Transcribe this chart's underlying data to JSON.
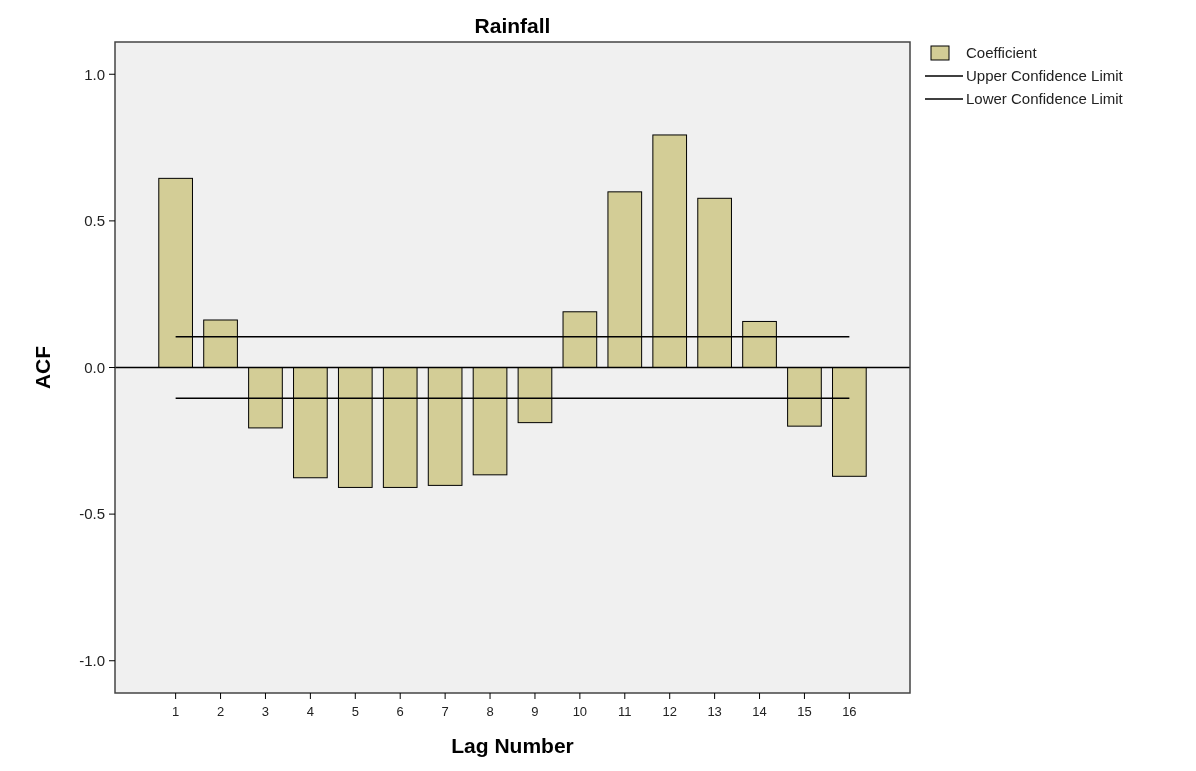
{
  "chart_data": {
    "type": "bar",
    "title": "Rainfall",
    "xlabel": "Lag Number",
    "ylabel": "ACF",
    "categories": [
      "1",
      "2",
      "3",
      "4",
      "5",
      "6",
      "7",
      "8",
      "9",
      "10",
      "11",
      "12",
      "13",
      "14",
      "15",
      "16"
    ],
    "series": [
      {
        "name": "Coefficient",
        "type": "bar",
        "color": "#d3cd96",
        "values": [
          0.645,
          0.162,
          -0.206,
          -0.376,
          -0.409,
          -0.409,
          -0.402,
          -0.366,
          -0.188,
          0.19,
          0.599,
          0.793,
          0.577,
          0.157,
          -0.2,
          -0.371
        ]
      },
      {
        "name": "Upper Confidence Limit",
        "type": "line",
        "color": "#000000",
        "values": [
          0.105,
          0.105,
          0.105,
          0.105,
          0.105,
          0.105,
          0.105,
          0.105,
          0.105,
          0.105,
          0.105,
          0.105,
          0.105,
          0.105,
          0.105,
          0.105
        ]
      },
      {
        "name": "Lower Confidence Limit",
        "type": "line",
        "color": "#000000",
        "values": [
          -0.105,
          -0.105,
          -0.105,
          -0.105,
          -0.105,
          -0.105,
          -0.105,
          -0.105,
          -0.105,
          -0.105,
          -0.105,
          -0.105,
          -0.105,
          -0.105,
          -0.105,
          -0.105
        ]
      }
    ],
    "ylim": [
      -1.11,
      1.11
    ],
    "yticks": [
      {
        "value": -1,
        "label": "-1.0"
      },
      {
        "value": -0.5,
        "label": "-0.5"
      },
      {
        "value": 0,
        "label": "0.0"
      },
      {
        "value": 0.5,
        "label": "0.5"
      },
      {
        "value": 1,
        "label": "1.0"
      }
    ],
    "grid": false,
    "legend": "top right",
    "marker": "none",
    "line_style": "solid"
  }
}
